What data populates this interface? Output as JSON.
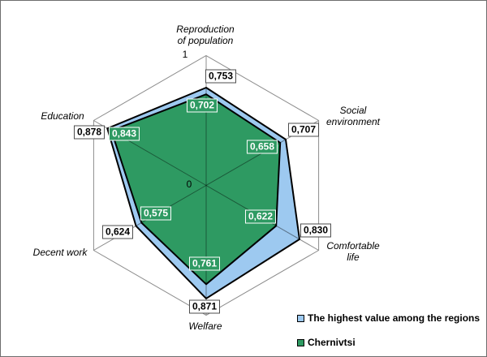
{
  "chart_data": {
    "type": "radar",
    "title": "",
    "categories": [
      "Reproduction of population",
      "Social environment",
      "Comfortable life",
      "Welfare",
      "Decent work",
      "Education"
    ],
    "axis_display": [
      "Reproduction\nof population",
      "Social\nenvironment",
      "Comfortable\nlife",
      "Welfare",
      "Decent work",
      "Education"
    ],
    "rmin_label": "0",
    "rmax_label": "1",
    "rmax": 1,
    "grid": {
      "shape": "hexagon",
      "rings": [
        1
      ],
      "spokes": true
    },
    "legend_position": "bottom-right",
    "series": [
      {
        "name": "The highest value among the regions",
        "color": "#9DC9F0",
        "values": [
          0.753,
          0.707,
          0.83,
          0.871,
          0.624,
          0.878
        ],
        "labels": [
          "0,753",
          "0,707",
          "0,830",
          "0,871",
          "0,624",
          "0,878"
        ]
      },
      {
        "name": "Chernivtsi",
        "color": "#2E9A62",
        "values": [
          0.702,
          0.658,
          0.622,
          0.761,
          0.575,
          0.843
        ],
        "labels": [
          "0,702",
          "0,658",
          "0,622",
          "0,761",
          "0,575",
          "0,843"
        ]
      }
    ]
  }
}
